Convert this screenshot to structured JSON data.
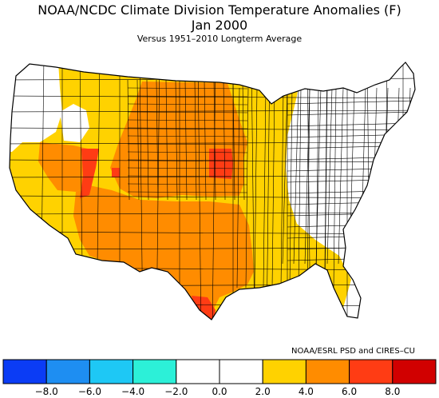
{
  "header": {
    "title": "NOAA/NCDC Climate Division Temperature Anomalies (F)",
    "period": "Jan 2000",
    "subtitle": "Versus 1951–2010 Longterm Average"
  },
  "credit": "NOAA/ESRL PSD and CIRES–CU",
  "legend": {
    "colors": [
      "#0b3cf5",
      "#1e8ef2",
      "#1ec8f5",
      "#2cf0d8",
      "#ffffff",
      "#ffffff",
      "#ffd200",
      "#ff8c00",
      "#ff3c14",
      "#d10000"
    ],
    "ticks": [
      "−8.0",
      "−6.0",
      "−4.0",
      "−2.0",
      "0.0",
      "2.0",
      "4.0",
      "6.0",
      "8.0"
    ]
  },
  "map": {
    "colors": {
      "white": "#ffffff",
      "yellow": "#ffd200",
      "orange": "#ff8c00",
      "red": "#ff3c14",
      "border": "#000000"
    }
  }
}
